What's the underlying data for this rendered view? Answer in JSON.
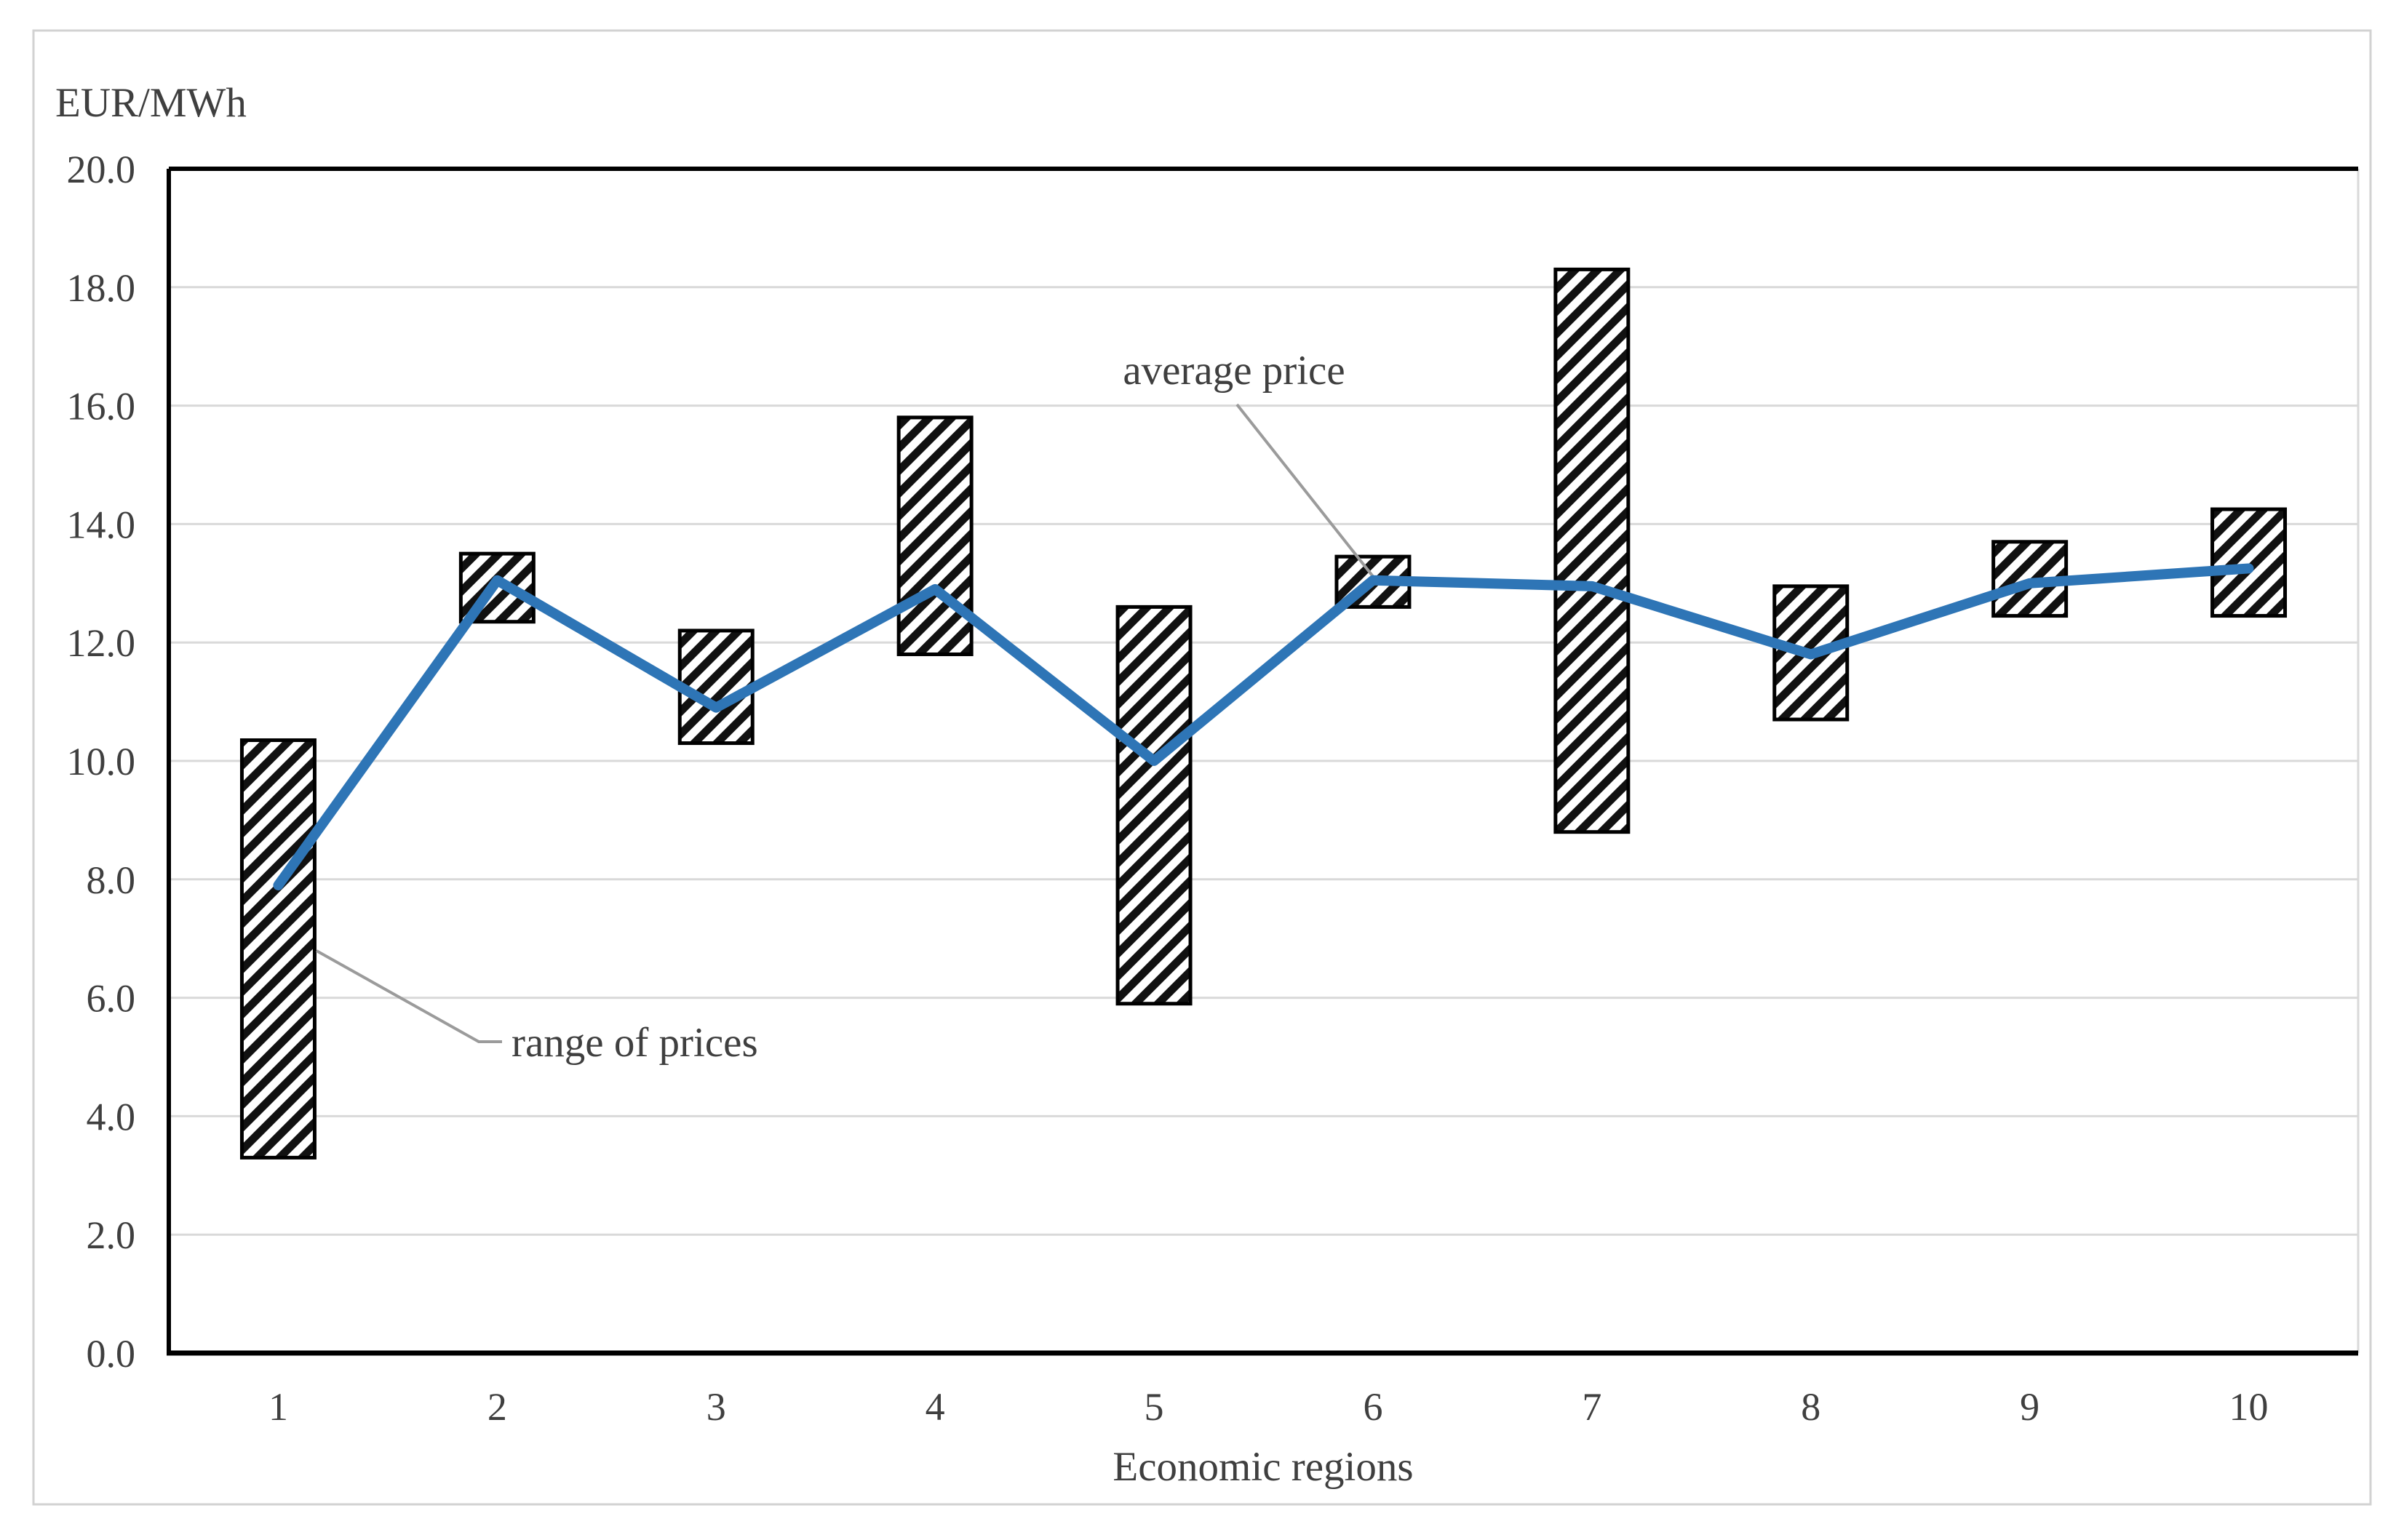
{
  "figure": {
    "background_color": "#ffffff",
    "border_color": "#d2d2d2"
  },
  "chart_data": {
    "type": "combo-range-column-line",
    "title": "EUR/MWh",
    "xlabel": "Economic regions",
    "ylabel": "EUR/MWh",
    "categories": [
      "1",
      "2",
      "3",
      "4",
      "5",
      "6",
      "7",
      "8",
      "9",
      "10"
    ],
    "series": [
      {
        "name": "range of prices",
        "type": "range-column",
        "low": [
          3.3,
          12.35,
          10.3,
          11.8,
          5.9,
          12.6,
          8.8,
          10.7,
          12.45,
          12.45
        ],
        "high": [
          10.35,
          13.5,
          12.2,
          15.8,
          12.6,
          13.45,
          18.3,
          12.95,
          13.7,
          14.25
        ],
        "fill_pattern": "diagonal-hatch",
        "pattern_color": "#111111",
        "border_color": "#000000"
      },
      {
        "name": "average price",
        "type": "line",
        "values": [
          7.9,
          13.05,
          10.9,
          12.9,
          10.0,
          13.05,
          12.95,
          11.8,
          13.0,
          13.25
        ],
        "color": "#2e75b6"
      }
    ],
    "ylim": [
      0,
      20
    ],
    "ytick_step": 2,
    "ytick_labels": [
      "0.0",
      "2.0",
      "4.0",
      "6.0",
      "8.0",
      "10.0",
      "12.0",
      "14.0",
      "16.0",
      "18.0",
      "20.0"
    ],
    "grid": true,
    "gridline_color": "#d9d9d9",
    "legend": "none",
    "annotations": [
      {
        "text": "average price",
        "points_to_region": "6",
        "leader_color": "#9b9b9b"
      },
      {
        "text": "range of prices",
        "points_to_region": "1",
        "leader_color": "#9b9b9b"
      }
    ]
  }
}
